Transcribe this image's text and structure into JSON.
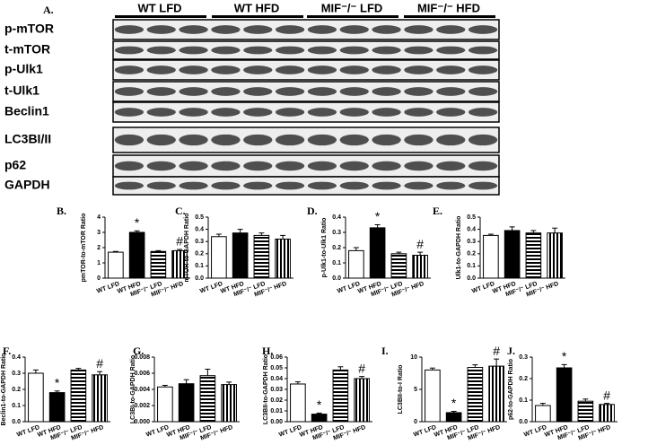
{
  "blot_panel": {
    "label": "A.",
    "groups": [
      "WT LFD",
      "WT HFD",
      "MIF⁻/⁻ LFD",
      "MIF⁻/⁻ HFD"
    ],
    "rows": [
      "p-mTOR",
      "t-mTOR",
      "p-Ulk1",
      "t-Ulk1",
      "Beclin1",
      "LC3BI/II",
      "p62",
      "GAPDH"
    ]
  },
  "chart_data": [
    {
      "type": "bar",
      "panel": "B.",
      "y_label": "pmTOR-to-mTOR Ratio",
      "categories": [
        "WT LFD",
        "WT HFD",
        "MIF⁻/⁻ LFD",
        "MIF⁻/⁻ HFD"
      ],
      "values": [
        1.7,
        3.0,
        1.75,
        1.8
      ],
      "errors": [
        0.05,
        0.1,
        0.05,
        0.08
      ],
      "annotations": [
        null,
        "*",
        null,
        "#"
      ],
      "ylim": [
        0,
        4
      ],
      "yticks": [
        0,
        1,
        2,
        3,
        4
      ]
    },
    {
      "type": "bar",
      "panel": "C.",
      "y_label": "mTOR-to-GAPDH Ratio",
      "categories": [
        "WT LFD",
        "WT HFD",
        "MIF⁻/⁻ LFD",
        "MIF⁻/⁻ HFD"
      ],
      "values": [
        0.34,
        0.37,
        0.35,
        0.32
      ],
      "errors": [
        0.02,
        0.03,
        0.02,
        0.03
      ],
      "annotations": [
        null,
        null,
        null,
        null
      ],
      "ylim": [
        0,
        0.5
      ],
      "yticks": [
        {
          "value": 0,
          "label": "0.0"
        },
        0.1,
        0.2,
        0.3,
        0.4,
        0.5
      ]
    },
    {
      "type": "bar",
      "panel": "D.",
      "y_label": "p-Ulk1-to-Ulk1 Ratio",
      "categories": [
        "WT LFD",
        "WT HFD",
        "MIF⁻/⁻ LFD",
        "MIF⁻/⁻ HFD"
      ],
      "values": [
        0.18,
        0.33,
        0.16,
        0.15
      ],
      "errors": [
        0.02,
        0.02,
        0.01,
        0.02
      ],
      "annotations": [
        null,
        "*",
        null,
        "#"
      ],
      "ylim": [
        0,
        0.4
      ],
      "yticks": [
        {
          "value": 0,
          "label": "0.0"
        },
        0.1,
        0.2,
        0.3,
        0.4
      ]
    },
    {
      "type": "bar",
      "panel": "E.",
      "y_label": "Ulk1-to-GAPDH Ratio",
      "categories": [
        "WT LFD",
        "WT HFD",
        "MIF⁻/⁻ LFD",
        "MIF⁻/⁻ HFD"
      ],
      "values": [
        0.35,
        0.39,
        0.37,
        0.37
      ],
      "errors": [
        0.01,
        0.03,
        0.02,
        0.04
      ],
      "annotations": [
        null,
        null,
        null,
        null
      ],
      "ylim": [
        0,
        0.5
      ],
      "yticks": [
        {
          "value": 0,
          "label": "0.0"
        },
        0.1,
        0.2,
        0.3,
        0.4,
        0.5
      ]
    },
    {
      "type": "bar",
      "panel": "F.",
      "y_label": "Beclin1-to-GAPDH Ratio",
      "categories": [
        "WT LFD",
        "WT HFD",
        "MIF⁻/⁻ LFD",
        "MIF⁻/⁻ HFD"
      ],
      "values": [
        0.3,
        0.18,
        0.32,
        0.29
      ],
      "errors": [
        0.02,
        0.01,
        0.01,
        0.02
      ],
      "annotations": [
        null,
        "*",
        null,
        "#"
      ],
      "ylim": [
        0,
        0.4
      ],
      "yticks": [
        {
          "value": 0,
          "label": "0.0"
        },
        0.1,
        0.2,
        0.3,
        0.4
      ]
    },
    {
      "type": "bar",
      "panel": "G.",
      "y_label": "LC3BI-to-GAPDH Ratio",
      "categories": [
        "WT LFD",
        "WT HFD",
        "MIF⁻/⁻ LFD",
        "MIF⁻/⁻ HFD"
      ],
      "values": [
        0.0043,
        0.0047,
        0.0057,
        0.0046
      ],
      "errors": [
        0.0002,
        0.0005,
        0.0008,
        0.0003
      ],
      "annotations": [
        null,
        null,
        null,
        null
      ],
      "ylim": [
        0,
        0.008
      ],
      "yticks": [
        {
          "value": 0,
          "label": "0.000"
        },
        0.002,
        0.004,
        0.006,
        0.008
      ]
    },
    {
      "type": "bar",
      "panel": "H.",
      "y_label": "LC3BII-to-GAPDH Ratio",
      "categories": [
        "WT LFD",
        "WT HFD",
        "MIF⁻/⁻ LFD",
        "MIF⁻/⁻ HFD"
      ],
      "values": [
        0.035,
        0.007,
        0.048,
        0.04
      ],
      "errors": [
        0.002,
        0.001,
        0.003,
        0.002
      ],
      "annotations": [
        null,
        "*",
        null,
        "#"
      ],
      "ylim": [
        0,
        0.06
      ],
      "yticks": [
        {
          "value": 0,
          "label": "0.00"
        },
        0.01,
        0.02,
        0.03,
        0.04,
        0.05,
        0.06
      ]
    },
    {
      "type": "bar",
      "panel": "I.",
      "y_label": "LC3BII-to-I Ratio",
      "categories": [
        "WT LFD",
        "WT HFD",
        "MIF⁻/⁻ LFD",
        "MIF⁻/⁻ HFD"
      ],
      "values": [
        8.0,
        1.4,
        8.4,
        8.6
      ],
      "errors": [
        0.3,
        0.2,
        0.4,
        1.1
      ],
      "annotations": [
        null,
        "*",
        null,
        "#"
      ],
      "ylim": [
        0,
        10
      ],
      "yticks": [
        0,
        5,
        10
      ]
    },
    {
      "type": "bar",
      "panel": "J.",
      "y_label": "p62-to-GAPDH Ratio",
      "categories": [
        "WT LFD",
        "WT HFD",
        "MIF⁻/⁻ LFD",
        "MIF⁻/⁻ HFD"
      ],
      "values": [
        0.075,
        0.25,
        0.095,
        0.08
      ],
      "errors": [
        0.01,
        0.015,
        0.01,
        0.005
      ],
      "annotations": [
        null,
        "*",
        null,
        "#"
      ],
      "ylim": [
        0,
        0.3
      ],
      "yticks": [
        {
          "value": 0,
          "label": "0.0"
        },
        0.1,
        0.2,
        0.3
      ]
    }
  ]
}
